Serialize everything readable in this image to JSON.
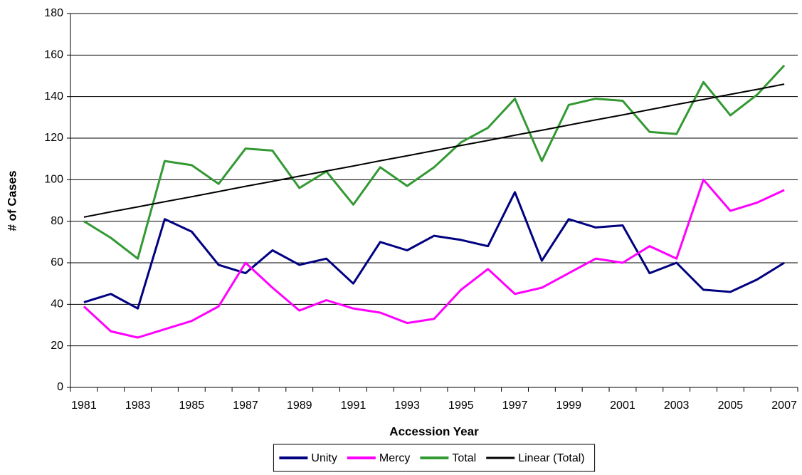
{
  "chart_data": {
    "type": "line",
    "x_label": "Accession Year",
    "y_label": "# of Cases",
    "categories": [
      "1981",
      null,
      "1983",
      null,
      "1985",
      null,
      "1987",
      null,
      "1989",
      null,
      "1991",
      null,
      "1993",
      null,
      "1995",
      null,
      "1997",
      null,
      "1999",
      null,
      "2001",
      null,
      "2003",
      null,
      "2005",
      null,
      "2007"
    ],
    "series": [
      {
        "name": "Unity",
        "color": "#000080",
        "width": 3,
        "values": [
          41,
          45,
          38,
          81,
          75,
          59,
          55,
          66,
          59,
          62,
          50,
          70,
          66,
          73,
          71,
          68,
          94,
          61,
          81,
          77,
          78,
          55,
          60,
          47,
          46,
          52,
          60
        ]
      },
      {
        "name": "Mercy",
        "color": "#ff00ff",
        "width": 3,
        "values": [
          39,
          27,
          24,
          28,
          32,
          39,
          60,
          48,
          37,
          42,
          38,
          36,
          31,
          33,
          47,
          57,
          45,
          48,
          55,
          62,
          60,
          68,
          62,
          100,
          85,
          89,
          95
        ]
      },
      {
        "name": "Total",
        "color": "#339933",
        "width": 3,
        "values": [
          80,
          72,
          62,
          109,
          107,
          98,
          115,
          114,
          96,
          104,
          88,
          106,
          97,
          106,
          118,
          125,
          139,
          109,
          136,
          139,
          138,
          123,
          122,
          147,
          131,
          141,
          155
        ]
      },
      {
        "name": "Linear (Total)",
        "color": "#000000",
        "width": 2,
        "values": [
          82.0,
          84.5,
          86.9,
          89.4,
          91.8,
          94.3,
          96.8,
          99.2,
          101.7,
          104.2,
          106.6,
          109.1,
          111.5,
          114.0,
          116.5,
          118.9,
          121.4,
          123.8,
          126.3,
          128.8,
          131.2,
          133.7,
          136.2,
          138.6,
          141.1,
          143.5,
          146.0
        ]
      }
    ],
    "ylim": [
      0,
      180
    ],
    "yticks": [
      0,
      20,
      40,
      60,
      80,
      100,
      120,
      140,
      160,
      180
    ],
    "grid": true,
    "legend": "bottom"
  }
}
